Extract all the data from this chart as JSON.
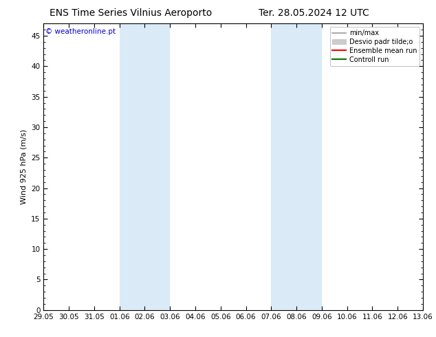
{
  "title_left": "ENS Time Series Vilnius Aeroporto",
  "title_right": "Ter. 28.05.2024 12 UTC",
  "ylabel": "Wind 925 hPa (m/s)",
  "watermark": "© weatheronline.pt",
  "ylim": [
    0,
    47
  ],
  "yticks": [
    0,
    5,
    10,
    15,
    20,
    25,
    30,
    35,
    40,
    45
  ],
  "xtick_labels": [
    "29.05",
    "30.05",
    "31.05",
    "01.06",
    "02.06",
    "03.06",
    "04.06",
    "05.06",
    "06.06",
    "07.06",
    "08.06",
    "09.06",
    "10.06",
    "11.06",
    "12.06",
    "13.06"
  ],
  "xmin": 0,
  "xmax": 15,
  "shade_bands": [
    {
      "xstart": 3,
      "xend": 5
    },
    {
      "xstart": 9,
      "xend": 11
    }
  ],
  "shade_color": "#daeaf7",
  "background_color": "#ffffff",
  "plot_bg_color": "#ffffff",
  "legend_items": [
    {
      "label": "min/max",
      "color": "#999999",
      "lw": 1.2,
      "ls": "-"
    },
    {
      "label": "Desvio padr tilde;o",
      "color": "#cccccc",
      "lw": 6,
      "ls": "-"
    },
    {
      "label": "Ensemble mean run",
      "color": "#ff0000",
      "lw": 1.5,
      "ls": "-"
    },
    {
      "label": "Controll run",
      "color": "#007700",
      "lw": 1.5,
      "ls": "-"
    }
  ],
  "title_fontsize": 10,
  "axis_fontsize": 8,
  "tick_fontsize": 7.5,
  "watermark_color": "#0000cc",
  "grid_color": "#dddddd",
  "border_color": "#000000"
}
